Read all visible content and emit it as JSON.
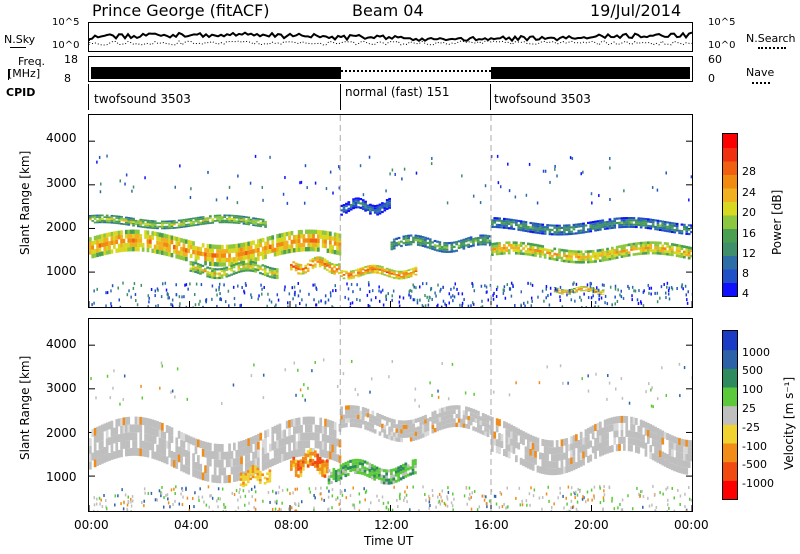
{
  "header": {
    "station": "Prince George (fitACF)",
    "beam": "Beam 04",
    "date": "19/Jul/2014"
  },
  "top_panels": {
    "nsky_label": "N.Sky",
    "nsky_ticks": [
      "10^5",
      "10^0"
    ],
    "nsearch_label": "N.Search",
    "nsearch_ticks": [
      "10^5",
      "10^0"
    ],
    "freq_label_1": "Freq.",
    "freq_label_2": "[MHz]",
    "freq_ticks": [
      "18",
      "8"
    ],
    "nave_label": "Nave",
    "nave_ticks": [
      "60",
      "0"
    ],
    "cpid_label": "CPID",
    "cpid_segments": [
      {
        "label": "twofsound 3503",
        "start_hour": 0
      },
      {
        "label": "normal (fast) 151",
        "start_hour": 10
      },
      {
        "label": "twofsound 3503",
        "start_hour": 16
      }
    ]
  },
  "chart_data": [
    {
      "type": "heatmap",
      "panel": "power",
      "ylabel": "Slant Range [km]",
      "yticks": [
        "1000",
        "2000",
        "3000",
        "4000"
      ],
      "ylim": [
        200,
        4600
      ],
      "xlim": [
        0,
        24
      ],
      "colorbar": {
        "label": "Power [dB]",
        "ticks": [
          "28",
          "24",
          "20",
          "16",
          "12",
          "8",
          "4"
        ],
        "range": [
          0,
          32
        ],
        "colors": [
          "#1010ff",
          "#2050c8",
          "#2e6ea8",
          "#3f8f6a",
          "#4aa050",
          "#8dc63f",
          "#d8d820",
          "#f0b020",
          "#f08a10",
          "#f06010",
          "#f03010",
          "#ff0000"
        ]
      },
      "bands": [
        {
          "from_hour": 0,
          "to_hour": 10,
          "center_km": 1550,
          "width_km": 500,
          "level": 26
        },
        {
          "from_hour": 0,
          "to_hour": 7,
          "center_km": 2150,
          "width_km": 200,
          "level": 20
        },
        {
          "from_hour": 4,
          "to_hour": 7.5,
          "center_km": 1050,
          "width_km": 250,
          "level": 22
        },
        {
          "from_hour": 8,
          "to_hour": 10,
          "center_km": 1150,
          "width_km": 250,
          "level": 28
        },
        {
          "from_hour": 10,
          "to_hour": 13,
          "center_km": 1000,
          "width_km": 200,
          "level": 28
        },
        {
          "from_hour": 10,
          "to_hour": 12,
          "center_km": 2500,
          "width_km": 250,
          "level": 10
        },
        {
          "from_hour": 12,
          "to_hour": 16,
          "center_km": 1650,
          "width_km": 250,
          "level": 16
        },
        {
          "from_hour": 16,
          "to_hour": 24,
          "center_km": 1450,
          "width_km": 300,
          "level": 24
        },
        {
          "from_hour": 16,
          "to_hour": 24,
          "center_km": 2050,
          "width_km": 250,
          "level": 14
        },
        {
          "from_hour": 18.5,
          "to_hour": 20.5,
          "center_km": 580,
          "width_km": 120,
          "level": 26
        }
      ]
    },
    {
      "type": "heatmap",
      "panel": "velocity",
      "ylabel": "Slant Range [km]",
      "yticks": [
        "1000",
        "2000",
        "3000",
        "4000"
      ],
      "ylim": [
        200,
        4600
      ],
      "xlim": [
        0,
        24
      ],
      "xticks": [
        "00:00",
        "04:00",
        "08:00",
        "12:00",
        "16:00",
        "20:00",
        "00:00"
      ],
      "xlabel": "Time UT",
      "colorbar": {
        "label": "Velocity [m s⁻¹]",
        "ticks": [
          "1000",
          "500",
          "100",
          "25",
          "-25",
          "-100",
          "-500",
          "-1000"
        ],
        "colors": [
          "#1c3bc4",
          "#2d62a8",
          "#2f8a5e",
          "#5cc93a",
          "#bfbfbf",
          "#f0d230",
          "#f28c18",
          "#f04a10",
          "#ff0000"
        ]
      },
      "bands": [
        {
          "from_hour": 0,
          "to_hour": 10,
          "center_km": 1600,
          "width_km": 900,
          "level": "ground"
        },
        {
          "from_hour": 10,
          "to_hour": 16,
          "center_km": 2200,
          "width_km": 500,
          "level": "ground"
        },
        {
          "from_hour": 16,
          "to_hour": 24,
          "center_km": 1700,
          "width_km": 800,
          "level": "ground"
        },
        {
          "from_hour": 8,
          "to_hour": 9.5,
          "center_km": 1300,
          "width_km": 400,
          "level": "negative"
        },
        {
          "from_hour": 6,
          "to_hour": 7.2,
          "center_km": 1000,
          "width_km": 300,
          "level": "slow_negative"
        },
        {
          "from_hour": 9.5,
          "to_hour": 13,
          "center_km": 1100,
          "width_km": 350,
          "level": "positive"
        }
      ]
    }
  ],
  "colors": {
    "dash_marker": "#aaaaaa"
  }
}
